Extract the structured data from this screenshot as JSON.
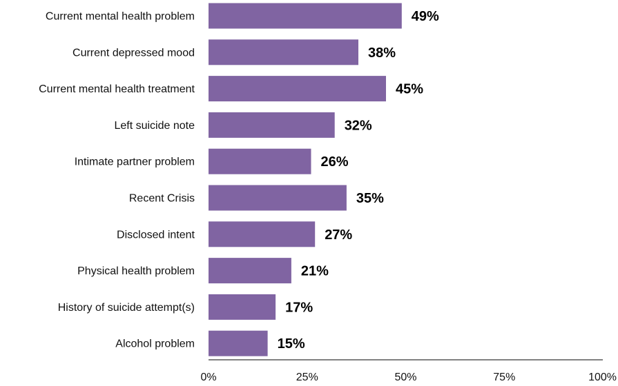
{
  "chart_data": {
    "type": "bar",
    "orientation": "horizontal",
    "categories": [
      "Current mental health problem",
      "Current depressed mood",
      "Current mental health treatment",
      "Left suicide note",
      "Intimate partner problem",
      "Recent Crisis",
      "Disclosed intent",
      "Physical health problem",
      "History of suicide attempt(s)",
      "Alcohol problem"
    ],
    "values": [
      49,
      38,
      45,
      32,
      26,
      35,
      27,
      21,
      17,
      15
    ],
    "data_labels": [
      "49%",
      "38%",
      "45%",
      "32%",
      "26%",
      "35%",
      "27%",
      "21%",
      "17%",
      "15%"
    ],
    "xlim": [
      0,
      100
    ],
    "xticks": [
      0,
      25,
      50,
      75,
      100
    ],
    "xtick_labels": [
      "0%",
      "25%",
      "50%",
      "75%",
      "100%"
    ],
    "title": "",
    "xlabel": "",
    "ylabel": "",
    "grid": false,
    "bar_color": "#8064a2"
  }
}
